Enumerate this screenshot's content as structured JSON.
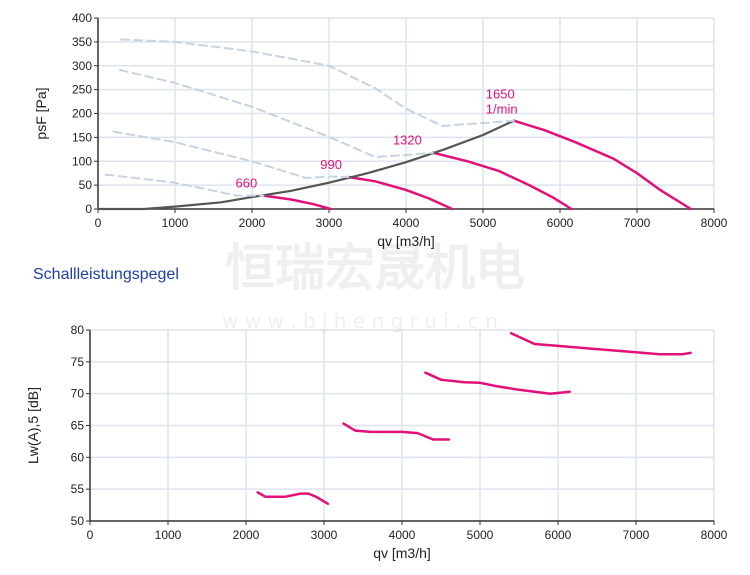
{
  "heading": "Schallleistungspegel",
  "watermark": {
    "cn": "恒瑞宏晟机电",
    "url": "w w w . b j h e n g r u i . c n"
  },
  "colors": {
    "speed_curve": "#e3107a",
    "system_curve": "#555555",
    "dashed_curve": "#c8d2e0",
    "grid": "#dde4ee",
    "heading": "#1d3ea8"
  },
  "chart_data": [
    {
      "type": "line",
      "xlabel": "qv [m3/h]",
      "ylabel": "psF [Pa]",
      "xlim": [
        0,
        8000
      ],
      "ylim": [
        0,
        400
      ],
      "xticks": [
        0,
        1000,
        2000,
        3000,
        4000,
        5000,
        6000,
        7000,
        8000
      ],
      "yticks": [
        0,
        50,
        100,
        150,
        200,
        250,
        300,
        350,
        400
      ],
      "grid": true,
      "series": [
        {
          "name": "660",
          "style": "solid",
          "points": [
            [
              2150,
              28
            ],
            [
              2500,
              20
            ],
            [
              2800,
              10
            ],
            [
              3020,
              0
            ]
          ]
        },
        {
          "name": "990",
          "style": "solid",
          "points": [
            [
              3250,
              67
            ],
            [
              3600,
              58
            ],
            [
              4000,
              40
            ],
            [
              4300,
              22
            ],
            [
              4600,
              0
            ]
          ]
        },
        {
          "name": "1320",
          "style": "solid",
          "points": [
            [
              4350,
              118
            ],
            [
              4800,
              100
            ],
            [
              5200,
              80
            ],
            [
              5600,
              50
            ],
            [
              5900,
              25
            ],
            [
              6150,
              0
            ]
          ]
        },
        {
          "name": "1650 1/min",
          "style": "solid",
          "points": [
            [
              5400,
              185
            ],
            [
              5800,
              165
            ],
            [
              6200,
              140
            ],
            [
              6700,
              105
            ],
            [
              7000,
              75
            ],
            [
              7300,
              40
            ],
            [
              7700,
              0
            ]
          ]
        },
        {
          "style": "system",
          "points": [
            [
              0,
              0
            ],
            [
              600,
              0
            ],
            [
              1000,
              5
            ],
            [
              1600,
              14
            ],
            [
              2000,
              25
            ],
            [
              2500,
              38
            ],
            [
              3000,
              55
            ],
            [
              3500,
              75
            ],
            [
              4000,
              98
            ],
            [
              4500,
              125
            ],
            [
              5000,
              155
            ],
            [
              5400,
              185
            ]
          ]
        },
        {
          "style": "dashed",
          "points": [
            [
              300,
              355
            ],
            [
              1000,
              350
            ],
            [
              2000,
              330
            ],
            [
              3000,
              300
            ],
            [
              3600,
              253
            ],
            [
              4000,
              210
            ],
            [
              4470,
              174
            ],
            [
              5000,
              180
            ],
            [
              5400,
              185
            ]
          ]
        },
        {
          "style": "dashed",
          "points": [
            [
              285,
              291
            ],
            [
              1000,
              264
            ],
            [
              2000,
              214
            ],
            [
              3000,
              151
            ],
            [
              3600,
              109
            ],
            [
              4000,
              113
            ],
            [
              4350,
              118
            ]
          ]
        },
        {
          "style": "dashed",
          "points": [
            [
              200,
              162
            ],
            [
              1000,
              140
            ],
            [
              2000,
              100
            ],
            [
              2500,
              75
            ],
            [
              2700,
              65
            ],
            [
              3000,
              68
            ],
            [
              3250,
              67
            ]
          ]
        },
        {
          "style": "dashed",
          "points": [
            [
              100,
              72
            ],
            [
              1000,
              55
            ],
            [
              1600,
              35
            ],
            [
              1800,
              28
            ],
            [
              2150,
              28
            ]
          ]
        }
      ],
      "labels": [
        {
          "text": "660",
          "x": 2150,
          "y": 28
        },
        {
          "text": "990",
          "x": 3250,
          "y": 67
        },
        {
          "text": "1320",
          "x": 4350,
          "y": 118
        },
        {
          "text": "1650",
          "x": 5400,
          "y": 185
        },
        {
          "text": "1/min",
          "x": 5400,
          "y": 185
        }
      ]
    },
    {
      "type": "line",
      "xlabel": "qv [m3/h]",
      "ylabel": "Lw(A),5 [dB]",
      "xlim": [
        0,
        8000
      ],
      "ylim": [
        50,
        80
      ],
      "xticks": [
        0,
        1000,
        2000,
        3000,
        4000,
        5000,
        6000,
        7000,
        8000
      ],
      "yticks": [
        50,
        55,
        60,
        65,
        70,
        75,
        80
      ],
      "grid": true,
      "series": [
        {
          "name": "660",
          "points": [
            [
              2150,
              54.5
            ],
            [
              2250,
              53.8
            ],
            [
              2500,
              53.8
            ],
            [
              2700,
              54.3
            ],
            [
              2800,
              54.3
            ],
            [
              2900,
              53.8
            ],
            [
              3050,
              52.7
            ]
          ]
        },
        {
          "name": "990",
          "points": [
            [
              3250,
              65.3
            ],
            [
              3400,
              64.2
            ],
            [
              3600,
              64
            ],
            [
              4000,
              64
            ],
            [
              4200,
              63.8
            ],
            [
              4400,
              62.8
            ],
            [
              4600,
              62.8
            ]
          ]
        },
        {
          "name": "1320",
          "points": [
            [
              4300,
              73.3
            ],
            [
              4500,
              72.2
            ],
            [
              4800,
              71.8
            ],
            [
              5000,
              71.7
            ],
            [
              5200,
              71.2
            ],
            [
              5500,
              70.6
            ],
            [
              5900,
              70
            ],
            [
              6150,
              70.3
            ]
          ]
        },
        {
          "name": "1650",
          "points": [
            [
              5400,
              79.5
            ],
            [
              5700,
              77.8
            ],
            [
              6000,
              77.5
            ],
            [
              6500,
              77
            ],
            [
              7000,
              76.5
            ],
            [
              7300,
              76.2
            ],
            [
              7600,
              76.2
            ],
            [
              7700,
              76.4
            ]
          ]
        }
      ]
    }
  ]
}
